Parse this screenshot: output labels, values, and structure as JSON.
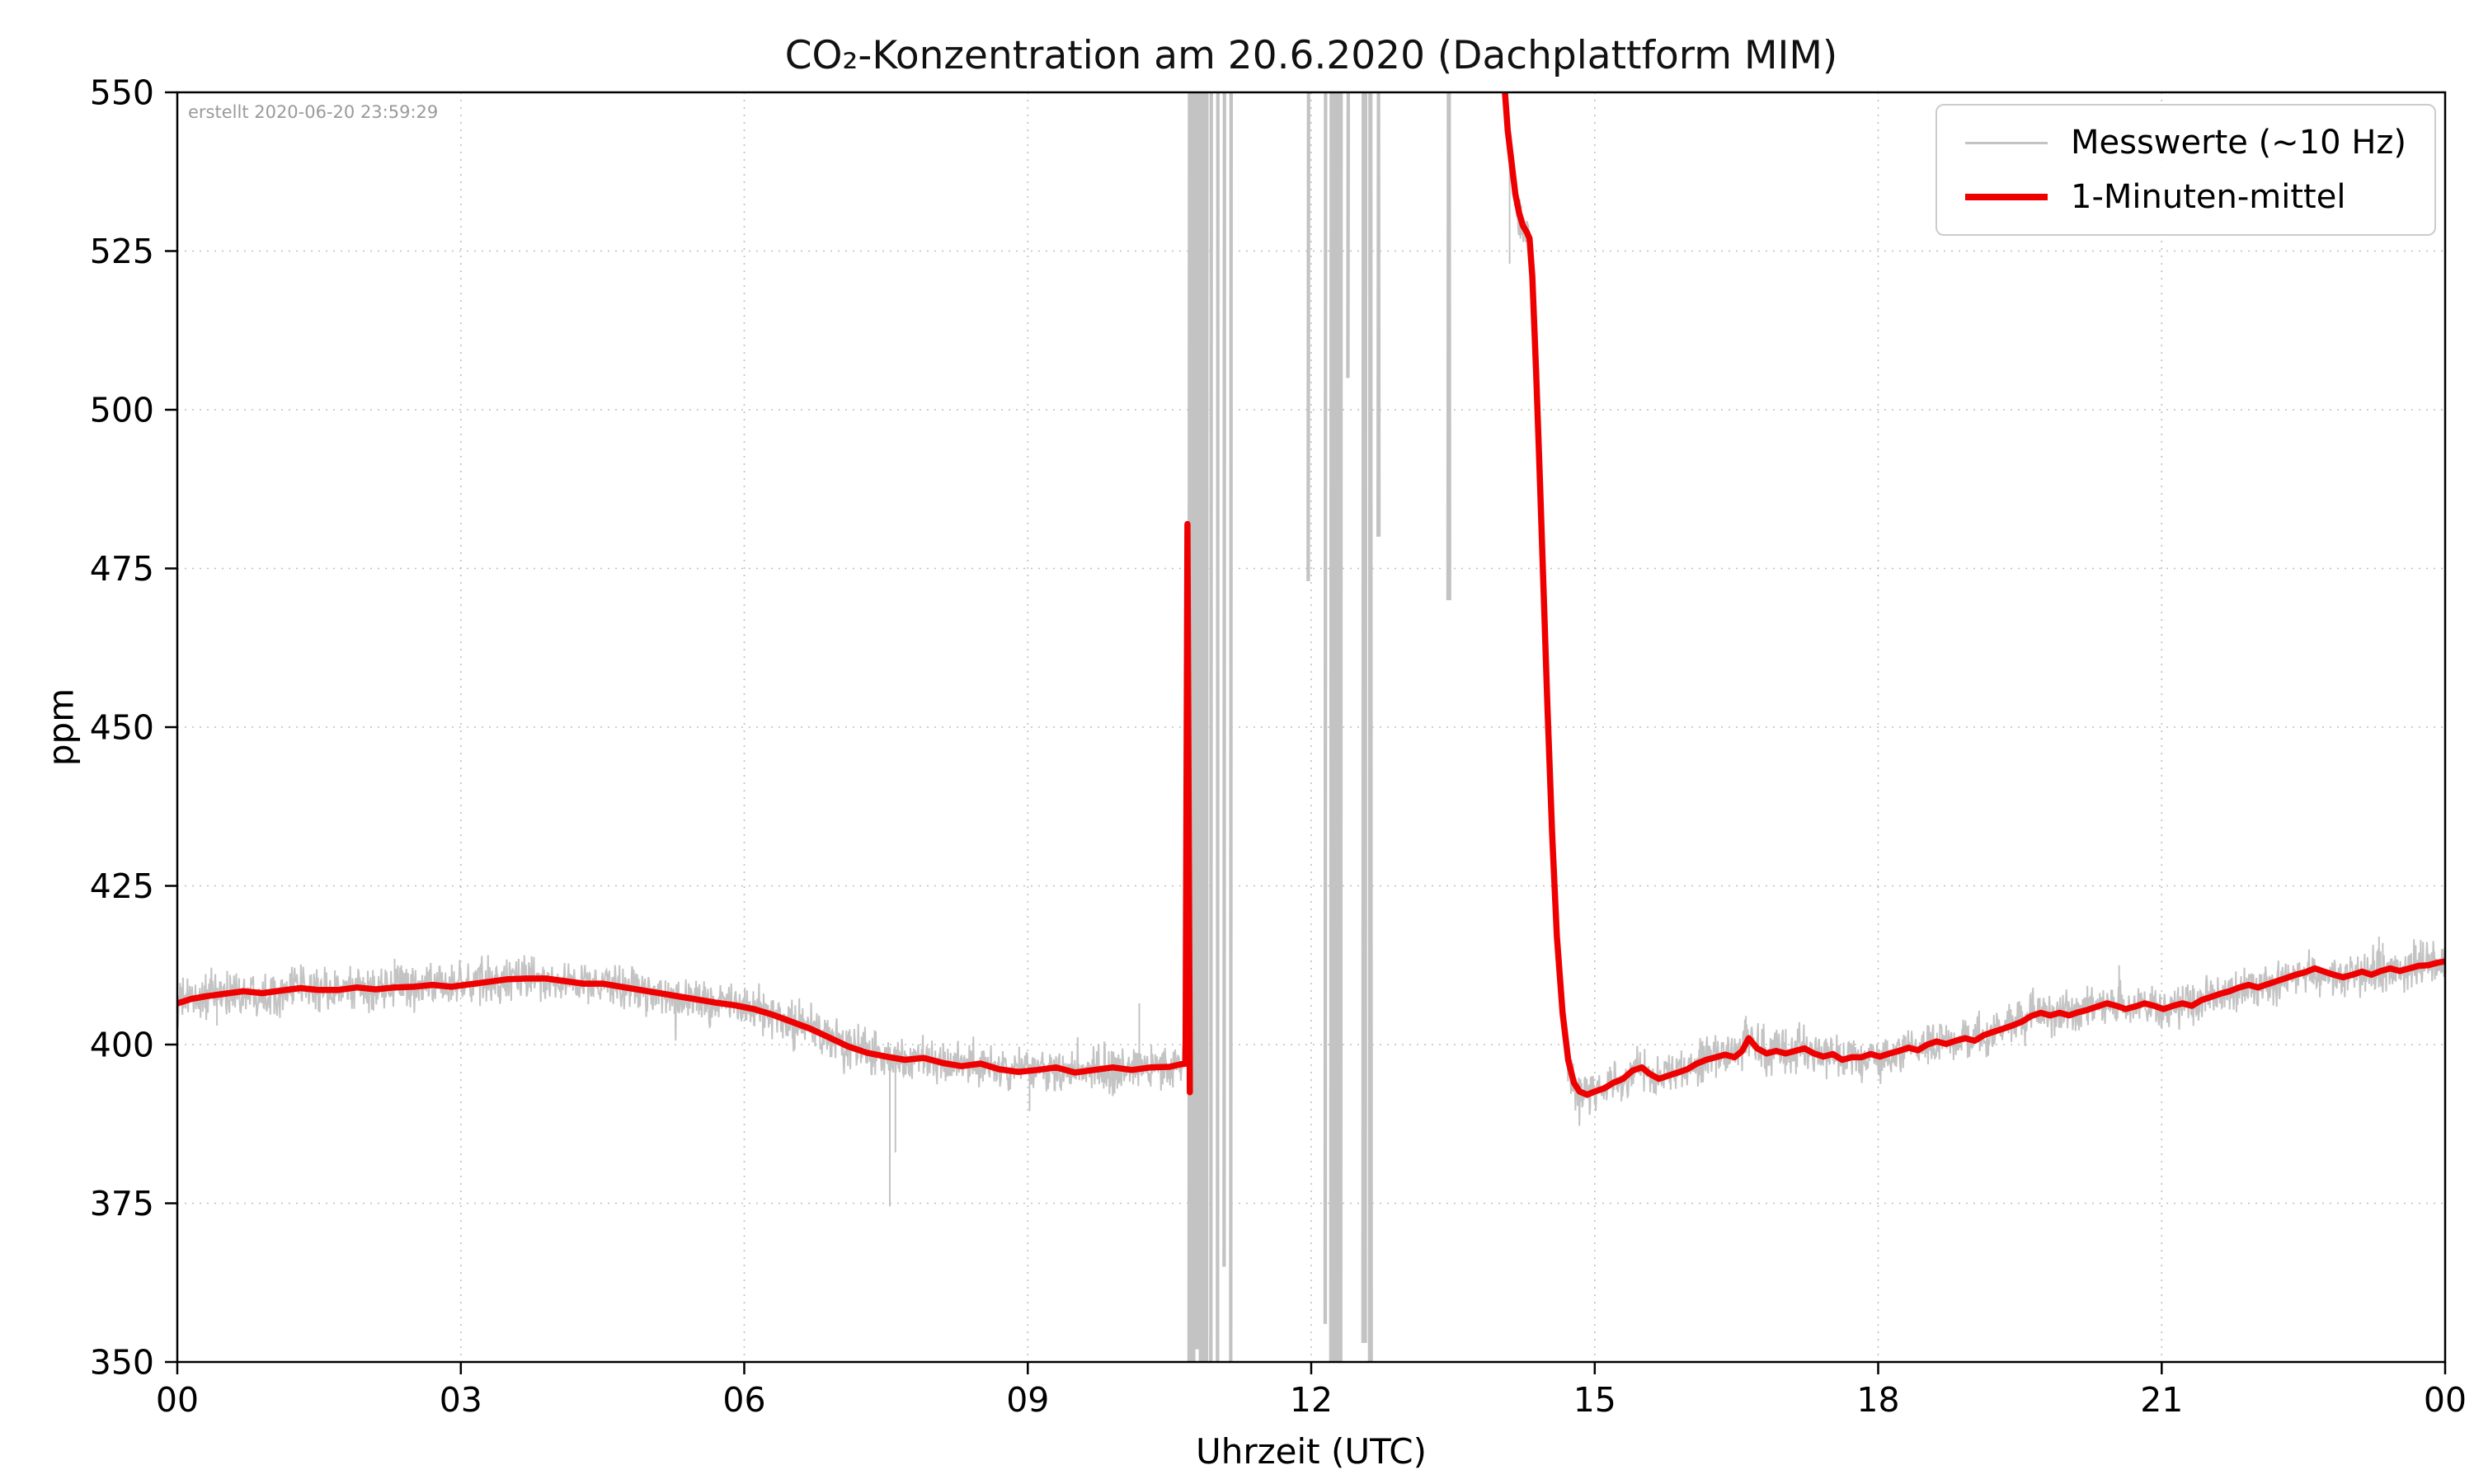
{
  "chart_data": {
    "type": "line",
    "title": "CO₂-Konzentration am 20.6.2020 (Dachplattform MIM)",
    "created_note": "erstellt 2020-06-20 23:59:29",
    "xlabel": "Uhrzeit (UTC)",
    "ylabel": "ppm",
    "xlim": [
      0,
      24
    ],
    "ylim": [
      350,
      550
    ],
    "x_ticks": [
      0,
      3,
      6,
      9,
      12,
      15,
      18,
      21,
      24
    ],
    "x_tick_labels": [
      "00",
      "03",
      "06",
      "09",
      "12",
      "15",
      "18",
      "21",
      "00"
    ],
    "y_ticks": [
      350,
      375,
      400,
      425,
      450,
      475,
      500,
      525,
      550
    ],
    "y_tick_labels": [
      "350",
      "375",
      "400",
      "425",
      "450",
      "475",
      "500",
      "525",
      "550"
    ],
    "grid_style": "dotted",
    "colors": {
      "raw": "#c3c3c3",
      "mean": "#ee0000",
      "grid": "#bfbfbf",
      "spine": "#000000",
      "note": "#9a9a9a",
      "legend_border": "#cccccc",
      "background": "#ffffff"
    },
    "legend": {
      "position": "upper right",
      "entries": [
        {
          "label": "Messwerte (~10 Hz)",
          "color": "#c3c3c3",
          "weight": "thin"
        },
        {
          "label": "1-Minuten-mittel",
          "color": "#ee0000",
          "weight": "thick"
        }
      ]
    },
    "mean_segments": [
      [
        [
          0,
          406.5
        ],
        [
          0.15,
          407.2
        ],
        [
          0.3,
          407.6
        ],
        [
          0.5,
          408
        ],
        [
          0.7,
          408.4
        ],
        [
          0.9,
          408.1
        ],
        [
          1.1,
          408.5
        ],
        [
          1.3,
          408.9
        ],
        [
          1.5,
          408.6
        ],
        [
          1.7,
          408.6
        ],
        [
          1.9,
          409
        ],
        [
          2.1,
          408.7
        ],
        [
          2.3,
          409
        ],
        [
          2.5,
          409.1
        ],
        [
          2.7,
          409.4
        ],
        [
          2.9,
          409.1
        ],
        [
          3.1,
          409.5
        ],
        [
          3.3,
          409.9
        ],
        [
          3.5,
          410.3
        ],
        [
          3.7,
          410.4
        ],
        [
          3.9,
          410.4
        ],
        [
          4.1,
          410
        ],
        [
          4.3,
          409.6
        ],
        [
          4.5,
          409.6
        ],
        [
          4.7,
          409.1
        ],
        [
          4.9,
          408.6
        ],
        [
          5.1,
          408.1
        ],
        [
          5.3,
          407.6
        ],
        [
          5.5,
          407.1
        ],
        [
          5.7,
          406.6
        ],
        [
          5.9,
          406.2
        ],
        [
          6.1,
          405.6
        ],
        [
          6.3,
          404.7
        ],
        [
          6.5,
          403.6
        ],
        [
          6.7,
          402.5
        ],
        [
          6.9,
          401.1
        ],
        [
          7.1,
          399.7
        ],
        [
          7.3,
          398.7
        ],
        [
          7.5,
          398.1
        ],
        [
          7.7,
          397.6
        ],
        [
          7.9,
          397.9
        ],
        [
          8.1,
          397.1
        ],
        [
          8.3,
          396.6
        ],
        [
          8.5,
          397
        ],
        [
          8.7,
          396.1
        ],
        [
          8.9,
          395.7
        ],
        [
          9.1,
          396
        ],
        [
          9.3,
          396.4
        ],
        [
          9.5,
          395.6
        ],
        [
          9.7,
          396
        ],
        [
          9.9,
          396.4
        ],
        [
          10.1,
          396
        ],
        [
          10.3,
          396.4
        ],
        [
          10.5,
          396.5
        ],
        [
          10.62,
          396.9
        ],
        [
          10.67,
          397
        ],
        [
          10.69,
          482
        ],
        [
          10.705,
          430
        ],
        [
          10.715,
          392.5
        ]
      ],
      [
        [
          13.98,
          576
        ],
        [
          14.04,
          552
        ],
        [
          14.08,
          544
        ],
        [
          14.12,
          539
        ],
        [
          14.16,
          534
        ],
        [
          14.2,
          531
        ],
        [
          14.24,
          529
        ],
        [
          14.28,
          528
        ],
        [
          14.31,
          527
        ],
        [
          14.34,
          521
        ],
        [
          14.38,
          506
        ],
        [
          14.42,
          489
        ],
        [
          14.46,
          471
        ],
        [
          14.5,
          453
        ],
        [
          14.55,
          433
        ],
        [
          14.6,
          417
        ],
        [
          14.66,
          405
        ],
        [
          14.72,
          397.5
        ],
        [
          14.78,
          394
        ],
        [
          14.84,
          392.6
        ],
        [
          14.92,
          392.1
        ],
        [
          15,
          392.6
        ],
        [
          15.1,
          393.1
        ],
        [
          15.2,
          394
        ],
        [
          15.3,
          394.6
        ],
        [
          15.4,
          395.9
        ],
        [
          15.5,
          396.4
        ],
        [
          15.58,
          395.4
        ],
        [
          15.68,
          394.6
        ],
        [
          15.78,
          395.1
        ],
        [
          15.88,
          395.6
        ],
        [
          15.98,
          396.1
        ],
        [
          16.08,
          397
        ],
        [
          16.18,
          397.6
        ],
        [
          16.28,
          398
        ],
        [
          16.38,
          398.4
        ],
        [
          16.48,
          398
        ],
        [
          16.56,
          399
        ],
        [
          16.63,
          401
        ],
        [
          16.72,
          399.4
        ],
        [
          16.82,
          398.6
        ],
        [
          16.92,
          399
        ],
        [
          17.02,
          398.6
        ],
        [
          17.12,
          399
        ],
        [
          17.22,
          399.4
        ],
        [
          17.32,
          398.6
        ],
        [
          17.42,
          398.1
        ],
        [
          17.52,
          398.5
        ],
        [
          17.62,
          397.6
        ],
        [
          17.72,
          398
        ],
        [
          17.82,
          398
        ],
        [
          17.92,
          398.5
        ],
        [
          18.02,
          398.1
        ],
        [
          18.12,
          398.6
        ],
        [
          18.22,
          399
        ],
        [
          18.32,
          399.5
        ],
        [
          18.42,
          399.1
        ],
        [
          18.52,
          400
        ],
        [
          18.62,
          400.5
        ],
        [
          18.72,
          400.1
        ],
        [
          18.82,
          400.6
        ],
        [
          18.92,
          401
        ],
        [
          19.02,
          400.6
        ],
        [
          19.12,
          401.5
        ],
        [
          19.22,
          402
        ],
        [
          19.32,
          402.5
        ],
        [
          19.42,
          403
        ],
        [
          19.52,
          403.6
        ],
        [
          19.62,
          404.5
        ],
        [
          19.72,
          405
        ],
        [
          19.82,
          404.6
        ],
        [
          19.92,
          405
        ],
        [
          20.02,
          404.6
        ],
        [
          20.12,
          405.1
        ],
        [
          20.22,
          405.5
        ],
        [
          20.32,
          406
        ],
        [
          20.42,
          406.5
        ],
        [
          20.52,
          406.1
        ],
        [
          20.62,
          405.6
        ],
        [
          20.72,
          406
        ],
        [
          20.82,
          406.5
        ],
        [
          20.92,
          406.1
        ],
        [
          21.02,
          405.6
        ],
        [
          21.12,
          406.1
        ],
        [
          21.22,
          406.5
        ],
        [
          21.32,
          406.1
        ],
        [
          21.42,
          407
        ],
        [
          21.52,
          407.5
        ],
        [
          21.62,
          408
        ],
        [
          21.72,
          408.4
        ],
        [
          21.82,
          409
        ],
        [
          21.92,
          409.4
        ],
        [
          22.02,
          409
        ],
        [
          22.12,
          409.5
        ],
        [
          22.22,
          410
        ],
        [
          22.32,
          410.5
        ],
        [
          22.42,
          411
        ],
        [
          22.52,
          411.4
        ],
        [
          22.62,
          412
        ],
        [
          22.72,
          411.5
        ],
        [
          22.82,
          411
        ],
        [
          22.92,
          410.6
        ],
        [
          23.02,
          411
        ],
        [
          23.12,
          411.5
        ],
        [
          23.22,
          411
        ],
        [
          23.32,
          411.6
        ],
        [
          23.42,
          412
        ],
        [
          23.52,
          411.6
        ],
        [
          23.62,
          412
        ],
        [
          23.72,
          412.4
        ],
        [
          23.82,
          412.5
        ],
        [
          23.92,
          412.9
        ],
        [
          24,
          413.1
        ]
      ]
    ],
    "raw": {
      "noise_ppm": 1.7,
      "segments_x": [
        [
          0,
          10.672
        ],
        [
          13.98,
          24
        ]
      ],
      "outliers": [
        [
          0.42,
          403
        ],
        [
          2.3,
          413.5
        ],
        [
          7.54,
          374.5
        ],
        [
          7.6,
          383
        ],
        [
          9.02,
          389.5
        ],
        [
          10.18,
          406.5
        ],
        [
          14.1,
          523
        ],
        [
          16.6,
          404.5
        ],
        [
          20.55,
          412.5
        ],
        [
          23.3,
          417
        ],
        [
          23.34,
          416
        ]
      ],
      "saturation_bands": [
        {
          "x0": 10.7,
          "x1": 10.76,
          "y0": 350,
          "y1": 550
        },
        {
          "x0": 10.77,
          "x1": 10.81,
          "y0": 352,
          "y1": 550
        },
        {
          "x0": 10.82,
          "x1": 10.9,
          "y0": 350,
          "y1": 550
        },
        {
          "x0": 10.93,
          "x1": 10.95,
          "y0": 350,
          "y1": 550
        },
        {
          "x0": 11.0,
          "x1": 11.02,
          "y0": 350,
          "y1": 550
        },
        {
          "x0": 11.07,
          "x1": 11.09,
          "y0": 365,
          "y1": 550
        },
        {
          "x0": 11.14,
          "x1": 11.16,
          "y0": 350,
          "y1": 550
        },
        {
          "x0": 11.96,
          "x1": 11.98,
          "y0": 473,
          "y1": 550
        },
        {
          "x0": 12.14,
          "x1": 12.16,
          "y0": 356,
          "y1": 550
        },
        {
          "x0": 12.2,
          "x1": 12.32,
          "y0": 350,
          "y1": 550
        },
        {
          "x0": 12.38,
          "x1": 12.4,
          "y0": 505,
          "y1": 550
        },
        {
          "x0": 12.54,
          "x1": 12.58,
          "y0": 353,
          "y1": 550
        },
        {
          "x0": 12.61,
          "x1": 12.64,
          "y0": 350,
          "y1": 550
        },
        {
          "x0": 12.7,
          "x1": 12.72,
          "y0": 480,
          "y1": 550
        },
        {
          "x0": 13.44,
          "x1": 13.47,
          "y0": 470,
          "y1": 550
        }
      ]
    }
  }
}
